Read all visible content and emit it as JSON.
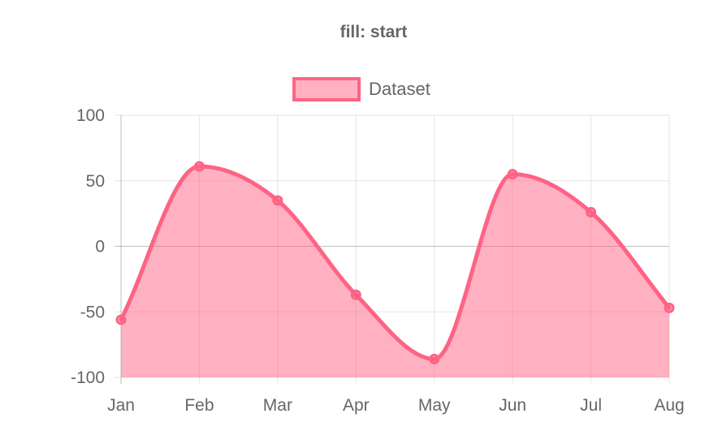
{
  "chart_data": {
    "type": "line",
    "title": "fill: start",
    "categories": [
      "Jan",
      "Feb",
      "Mar",
      "Apr",
      "May",
      "Jun",
      "Jul",
      "Aug"
    ],
    "series": [
      {
        "name": "Dataset",
        "values": [
          -56,
          61,
          35,
          -37,
          -86,
          55,
          26,
          -47
        ],
        "fill": "start",
        "color": "#ff6384",
        "fill_color": "rgba(255, 99, 132, 0.5)"
      }
    ],
    "ylim": [
      -100,
      100
    ],
    "y_ticks": [
      100,
      50,
      0,
      -50,
      -100
    ],
    "grid": true,
    "legend_position": "top",
    "xlabel": "",
    "ylabel": ""
  }
}
